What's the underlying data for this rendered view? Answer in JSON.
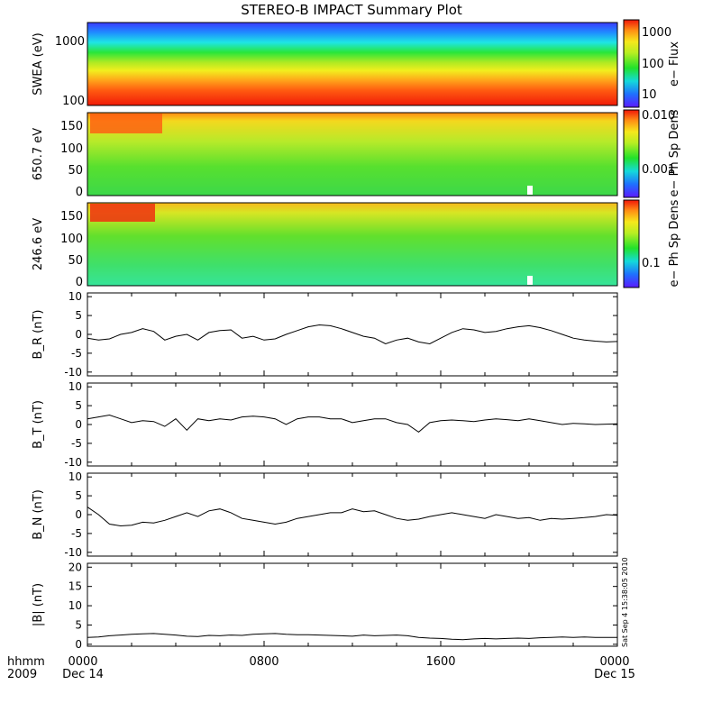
{
  "title": "STEREO-B IMPACT Summary Plot",
  "footer": {
    "time_label": "hhmm",
    "year_label": "2009",
    "x_ticks": [
      "0000",
      "0800",
      "1600",
      "0000"
    ],
    "x_dates": [
      "Dec 14",
      "",
      "",
      "Dec 15"
    ],
    "stamp": "Sat Sep 4 15:38:05 2010"
  },
  "chart_data": [
    {
      "type": "heatmap",
      "panel": "swea",
      "ylabel": "SWEA (eV)",
      "yscale": "log",
      "ylim": [
        95,
        2000
      ],
      "y_ticks": [
        "1000",
        "100"
      ],
      "colorbar": {
        "label": "e− Flux",
        "scale": "log",
        "ticks": [
          "1000",
          "100",
          "10"
        ]
      }
    },
    {
      "type": "heatmap",
      "panel": "pad650",
      "ylabel": "650.7 eV",
      "ylim": [
        -10,
        180
      ],
      "y_ticks": [
        "150",
        "100",
        "50",
        "0"
      ],
      "colorbar": {
        "label": "e− Ph Sp Dens",
        "scale": "log",
        "ticks": [
          "0.010",
          "0.001"
        ]
      }
    },
    {
      "type": "heatmap",
      "panel": "pad246",
      "ylabel": "246.6 eV",
      "ylim": [
        -10,
        180
      ],
      "y_ticks": [
        "150",
        "100",
        "50",
        "0"
      ],
      "colorbar": {
        "label": "e− Ph Sp Dens",
        "scale": "log",
        "ticks": [
          "0.1"
        ]
      }
    },
    {
      "type": "line",
      "panel": "br",
      "ylabel": "B_R (nT)",
      "ylim": [
        -11,
        11
      ],
      "y_ticks": [
        "10",
        "5",
        "0",
        "-5",
        "-10"
      ],
      "x": [
        0,
        0.5,
        1,
        1.5,
        2,
        2.5,
        3,
        3.5,
        4,
        4.5,
        5,
        5.5,
        6,
        6.5,
        7,
        7.5,
        8,
        8.5,
        9,
        9.5,
        10,
        10.5,
        11,
        11.5,
        12,
        12.5,
        13,
        13.5,
        14,
        14.5,
        15,
        15.5,
        16,
        16.5,
        17,
        17.5,
        18,
        18.5,
        19,
        19.5,
        20,
        20.5,
        21,
        21.5,
        22,
        22.5,
        23,
        23.5,
        24
      ],
      "values": [
        -1,
        -1.5,
        -1.2,
        0,
        0.5,
        1.5,
        0.8,
        -1.5,
        -0.5,
        0,
        -1.5,
        0.5,
        1,
        1.2,
        -1,
        -0.5,
        -1.5,
        -1.2,
        0,
        1,
        2,
        2.5,
        2.3,
        1.5,
        0.5,
        -0.5,
        -1,
        -2.5,
        -1.5,
        -1,
        -2,
        -2.5,
        -1,
        0.5,
        1.5,
        1.2,
        0.5,
        0.8,
        1.5,
        2,
        2.3,
        1.8,
        1,
        0,
        -1,
        -1.5,
        -1.8,
        -2,
        -1.9
      ]
    },
    {
      "type": "line",
      "panel": "bt",
      "ylabel": "B_T (nT)",
      "ylim": [
        -11,
        11
      ],
      "y_ticks": [
        "10",
        "5",
        "0",
        "-5",
        "-10"
      ],
      "x": [
        0,
        0.5,
        1,
        1.5,
        2,
        2.5,
        3,
        3.5,
        4,
        4.5,
        5,
        5.5,
        6,
        6.5,
        7,
        7.5,
        8,
        8.5,
        9,
        9.5,
        10,
        10.5,
        11,
        11.5,
        12,
        12.5,
        13,
        13.5,
        14,
        14.5,
        15,
        15.5,
        16,
        16.5,
        17,
        17.5,
        18,
        18.5,
        19,
        19.5,
        20,
        20.5,
        21,
        21.5,
        22,
        22.5,
        23,
        23.5,
        24
      ],
      "values": [
        1.5,
        2,
        2.5,
        1.5,
        0.5,
        1,
        0.8,
        -0.5,
        1.5,
        -1.5,
        1.5,
        1,
        1.5,
        1.2,
        2,
        2.2,
        2,
        1.5,
        0,
        1.5,
        2,
        2,
        1.5,
        1.5,
        0.5,
        1,
        1.5,
        1.5,
        0.5,
        0,
        -2,
        0.5,
        1,
        1.2,
        1,
        0.8,
        1.2,
        1.5,
        1.3,
        1,
        1.5,
        1,
        0.5,
        0,
        0.3,
        0.2,
        0,
        0.1,
        0.2
      ]
    },
    {
      "type": "line",
      "panel": "bn",
      "ylabel": "B_N (nT)",
      "ylim": [
        -11,
        11
      ],
      "y_ticks": [
        "10",
        "5",
        "0",
        "-5",
        "-10"
      ],
      "x": [
        0,
        0.5,
        1,
        1.5,
        2,
        2.5,
        3,
        3.5,
        4,
        4.5,
        5,
        5.5,
        6,
        6.5,
        7,
        7.5,
        8,
        8.5,
        9,
        9.5,
        10,
        10.5,
        11,
        11.5,
        12,
        12.5,
        13,
        13.5,
        14,
        14.5,
        15,
        15.5,
        16,
        16.5,
        17,
        17.5,
        18,
        18.5,
        19,
        19.5,
        20,
        20.5,
        21,
        21.5,
        22,
        22.5,
        23,
        23.5,
        24
      ],
      "values": [
        2,
        0,
        -2.5,
        -3,
        -2.8,
        -2,
        -2.2,
        -1.5,
        -0.5,
        0.5,
        -0.5,
        1,
        1.5,
        0.5,
        -1,
        -1.5,
        -2,
        -2.5,
        -2,
        -1,
        -0.5,
        0,
        0.5,
        0.5,
        1.5,
        0.8,
        1,
        0,
        -1,
        -1.5,
        -1.2,
        -0.5,
        0,
        0.5,
        0,
        -0.5,
        -1,
        0,
        -0.5,
        -1,
        -0.8,
        -1.5,
        -1,
        -1.2,
        -1,
        -0.8,
        -0.5,
        0,
        -0.2
      ]
    },
    {
      "type": "line",
      "panel": "bmag",
      "ylabel": "|B| (nT)",
      "ylim": [
        -0.5,
        21
      ],
      "y_ticks": [
        "20",
        "15",
        "10",
        "5",
        "0"
      ],
      "x": [
        0,
        0.5,
        1,
        1.5,
        2,
        2.5,
        3,
        3.5,
        4,
        4.5,
        5,
        5.5,
        6,
        6.5,
        7,
        7.5,
        8,
        8.5,
        9,
        9.5,
        10,
        10.5,
        11,
        11.5,
        12,
        12.5,
        13,
        13.5,
        14,
        14.5,
        15,
        15.5,
        16,
        16.5,
        17,
        17.5,
        18,
        18.5,
        19,
        19.5,
        20,
        20.5,
        21,
        21.5,
        22,
        22.5,
        23,
        23.5,
        24
      ],
      "values": [
        1.8,
        1.9,
        2.2,
        2.4,
        2.6,
        2.7,
        2.8,
        2.6,
        2.4,
        2.1,
        2,
        2.3,
        2.2,
        2.4,
        2.3,
        2.6,
        2.7,
        2.8,
        2.6,
        2.5,
        2.5,
        2.4,
        2.3,
        2.2,
        2.1,
        2.4,
        2.2,
        2.3,
        2.4,
        2.2,
        1.8,
        1.6,
        1.5,
        1.3,
        1.2,
        1.4,
        1.5,
        1.4,
        1.5,
        1.6,
        1.5,
        1.7,
        1.8,
        1.9,
        1.8,
        1.9,
        1.8,
        1.8,
        1.8
      ]
    }
  ]
}
